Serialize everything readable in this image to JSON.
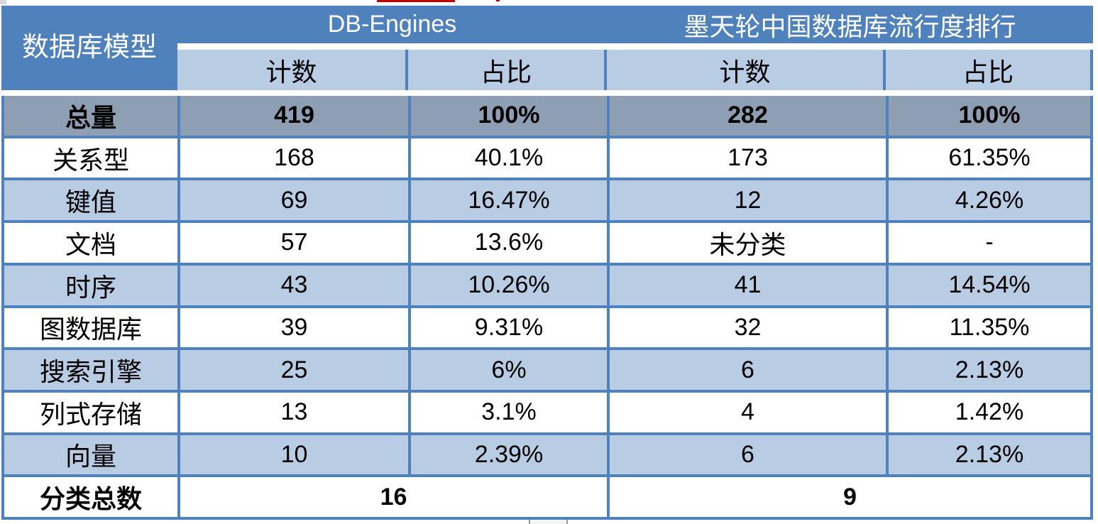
{
  "colors": {
    "header_blue": "#4F81BD",
    "border_blue": "#4F81BD",
    "light_blue": "#B8CCE4",
    "total_gray": "#8F9FB3",
    "header_text": "#FFFFFF",
    "body_text": "#000000",
    "artifact_red": "#C00000",
    "scroll_gray": "#F4F4F4"
  },
  "table": {
    "corner_header": "数据库模型",
    "groups": [
      {
        "label": "DB-Engines"
      },
      {
        "label": "墨天轮中国数据库流行度排行"
      }
    ],
    "sub_headers": [
      "计数",
      "占比",
      "计数",
      "占比"
    ],
    "rows": [
      {
        "label": "总量",
        "values": [
          "419",
          "100%",
          "282",
          "100%"
        ],
        "style": "total"
      },
      {
        "label": "关系型",
        "values": [
          "168",
          "40.1%",
          "173",
          "61.35%"
        ],
        "style": "white"
      },
      {
        "label": "键值",
        "values": [
          "69",
          "16.47%",
          "12",
          "4.26%"
        ],
        "style": "blue"
      },
      {
        "label": "文档",
        "values": [
          "57",
          "13.6%",
          "未分类",
          "-"
        ],
        "style": "white"
      },
      {
        "label": "时序",
        "values": [
          "43",
          "10.26%",
          "41",
          "14.54%"
        ],
        "style": "blue"
      },
      {
        "label": "图数据库",
        "values": [
          "39",
          "9.31%",
          "32",
          "11.35%"
        ],
        "style": "white"
      },
      {
        "label": "搜索引擎",
        "values": [
          "25",
          "6%",
          "6",
          "2.13%"
        ],
        "style": "blue"
      },
      {
        "label": "列式存储",
        "values": [
          "13",
          "3.1%",
          "4",
          "1.42%"
        ],
        "style": "white"
      },
      {
        "label": "向量",
        "values": [
          "10",
          "2.39%",
          "6",
          "2.13%"
        ],
        "style": "blue"
      }
    ],
    "footer_row": {
      "label": "分类总数",
      "values": [
        "16",
        "9"
      ]
    }
  },
  "chart_data": {
    "type": "table",
    "columns": [
      "数据库模型",
      "DB-Engines 计数",
      "DB-Engines 占比",
      "墨天轮中国数据库流行度排行 计数",
      "墨天轮中国数据库流行度排行 占比"
    ],
    "rows": [
      [
        "总量",
        "419",
        "100%",
        "282",
        "100%"
      ],
      [
        "关系型",
        "168",
        "40.1%",
        "173",
        "61.35%"
      ],
      [
        "键值",
        "69",
        "16.47%",
        "12",
        "4.26%"
      ],
      [
        "文档",
        "57",
        "13.6%",
        "未分类",
        "-"
      ],
      [
        "时序",
        "43",
        "10.26%",
        "41",
        "14.54%"
      ],
      [
        "图数据库",
        "39",
        "9.31%",
        "32",
        "11.35%"
      ],
      [
        "搜索引擎",
        "25",
        "6%",
        "6",
        "2.13%"
      ],
      [
        "列式存储",
        "13",
        "3.1%",
        "4",
        "1.42%"
      ],
      [
        "向量",
        "10",
        "2.39%",
        "6",
        "2.13%"
      ],
      [
        "分类总数",
        "16",
        "",
        "9",
        ""
      ]
    ],
    "layout": {
      "grid": "on",
      "zebra_striping": true,
      "total_row_highlighted": true
    }
  }
}
